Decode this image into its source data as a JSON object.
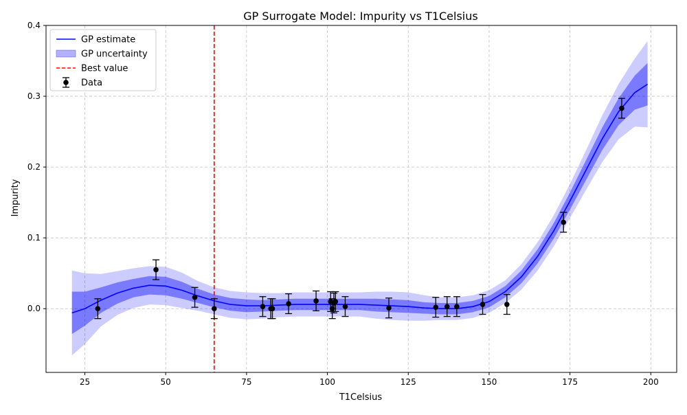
{
  "chart_data": {
    "type": "line",
    "title": "GP Surrogate Model: Impurity vs T1Celsius",
    "xlabel": "T1Celsius",
    "ylabel": "Impurity",
    "xlim": [
      13,
      208
    ],
    "ylim": [
      -0.09,
      0.4
    ],
    "xticks": [
      25,
      50,
      75,
      100,
      125,
      150,
      175,
      200
    ],
    "yticks": [
      0.0,
      0.1,
      0.2,
      0.3,
      0.4
    ],
    "xtick_labels": [
      "25",
      "50",
      "75",
      "100",
      "125",
      "150",
      "175",
      "200"
    ],
    "ytick_labels": [
      "0.0",
      "0.1",
      "0.2",
      "0.3",
      "0.4"
    ],
    "grid": true,
    "legend": {
      "position": "top-left",
      "entries": [
        "GP estimate",
        "GP uncertainty",
        "Best value",
        "Data"
      ]
    },
    "best_value_x": 65,
    "gp_estimate": {
      "name": "GP estimate",
      "color": "#0000ff",
      "x": [
        21,
        25,
        30,
        35,
        40,
        45,
        50,
        55,
        60,
        65,
        70,
        75,
        80,
        85,
        90,
        95,
        100,
        105,
        110,
        115,
        120,
        125,
        130,
        135,
        140,
        145,
        150,
        155,
        160,
        165,
        170,
        175,
        180,
        185,
        190,
        195,
        199
      ],
      "y": [
        -0.006,
        0.0,
        0.012,
        0.022,
        0.029,
        0.033,
        0.032,
        0.026,
        0.018,
        0.011,
        0.006,
        0.004,
        0.004,
        0.005,
        0.006,
        0.006,
        0.006,
        0.006,
        0.006,
        0.005,
        0.004,
        0.003,
        0.001,
        0.0,
        0.0,
        0.003,
        0.01,
        0.024,
        0.045,
        0.074,
        0.11,
        0.152,
        0.196,
        0.24,
        0.278,
        0.305,
        0.317
      ],
      "band1_halfwidth": [
        0.03,
        0.024,
        0.018,
        0.015,
        0.013,
        0.013,
        0.013,
        0.012,
        0.01,
        0.009,
        0.009,
        0.009,
        0.008,
        0.008,
        0.008,
        0.008,
        0.008,
        0.008,
        0.008,
        0.009,
        0.009,
        0.009,
        0.008,
        0.008,
        0.008,
        0.008,
        0.008,
        0.008,
        0.009,
        0.01,
        0.011,
        0.012,
        0.014,
        0.016,
        0.019,
        0.024,
        0.03
      ],
      "band2_halfwidth": [
        0.06,
        0.05,
        0.037,
        0.031,
        0.028,
        0.027,
        0.027,
        0.025,
        0.021,
        0.019,
        0.019,
        0.019,
        0.018,
        0.017,
        0.017,
        0.017,
        0.017,
        0.017,
        0.017,
        0.019,
        0.02,
        0.02,
        0.018,
        0.016,
        0.016,
        0.016,
        0.016,
        0.016,
        0.018,
        0.02,
        0.022,
        0.024,
        0.028,
        0.033,
        0.039,
        0.048,
        0.061
      ]
    },
    "uncertainty_color": "#0000ff",
    "best_value_color": "#ff0000",
    "data_points": {
      "name": "Data",
      "error": 0.014,
      "x": [
        29,
        47,
        59,
        65,
        80,
        82.5,
        83,
        88,
        96.5,
        101,
        101.5,
        102,
        102.5,
        105.5,
        119,
        133.5,
        137,
        140,
        148,
        155.5,
        173,
        191
      ],
      "y": [
        0.0,
        0.055,
        0.016,
        0.0,
        0.003,
        0.0,
        0.0,
        0.007,
        0.011,
        0.01,
        0.0,
        0.008,
        0.01,
        0.003,
        0.001,
        0.002,
        0.003,
        0.003,
        0.006,
        0.006,
        0.122,
        0.283
      ]
    }
  }
}
